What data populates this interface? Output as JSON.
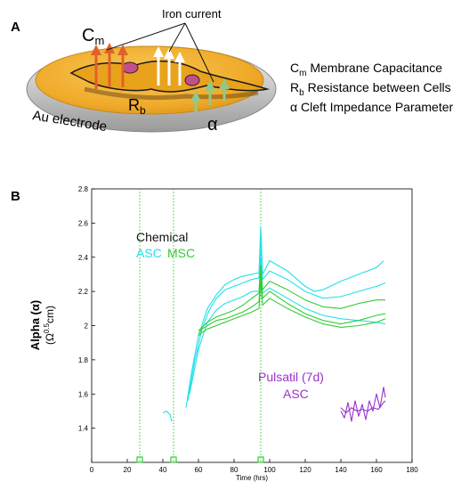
{
  "panel_a": {
    "label": "A",
    "iron_current": "Iron current",
    "cm_main": "C",
    "cm_sub": "m",
    "rb_main": "R",
    "rb_sub": "b",
    "alpha": "α",
    "electrode": "Au electrode",
    "legend": [
      {
        "sym": "C",
        "sub": "m",
        "text": "Membrane Capacitance"
      },
      {
        "sym": "R",
        "sub": "b",
        "text": "Resistance between Cells"
      },
      {
        "sym": "α",
        "sub": "",
        "text": "Cleft Impedance Parameter"
      }
    ],
    "colors": {
      "dish": "#f2b23a",
      "cell": "#e8a21c",
      "nucleus": "#c0508a",
      "arrow_cm": "#e0602a",
      "arrow_rb": "#ffffff",
      "arrow_alpha": "#8fc98a"
    }
  },
  "panel_b": {
    "label": "B",
    "ylabel_main": "Alpha (α)",
    "ylabel_unit": "(Ω",
    "ylabel_exp": "0.5",
    "ylabel_tail": "cm)",
    "annot_chemical": "Chemical",
    "annot_asc": "ASC",
    "annot_msc": "MSC",
    "annot_pulsatil": "Pulsatil (7d)",
    "annot_pulsatil_asc": "ASC"
  },
  "chart_data": {
    "type": "line",
    "xlabel": "Time (hrs)",
    "ylabel": "Alpha (α) (Ω^0.5cm)",
    "xlim": [
      0,
      180
    ],
    "ylim": [
      1.2,
      2.8
    ],
    "xticks": [
      0,
      20,
      40,
      60,
      80,
      100,
      120,
      140,
      160,
      180
    ],
    "yticks": [
      1.4,
      1.6,
      1.8,
      2,
      2.2,
      2.4,
      2.6,
      2.8
    ],
    "vlines": [
      27,
      46,
      95
    ],
    "markers": [
      {
        "x": 27,
        "y": 1.2
      },
      {
        "x": 46,
        "y": 1.2
      },
      {
        "x": 95,
        "y": 1.2
      }
    ],
    "colors": {
      "ASC": "#22e0e8",
      "MSC": "#33cc33",
      "Pulsatil": "#9933cc",
      "vline": "#33cc33"
    },
    "series": [
      {
        "name": "ASC",
        "group": "Chemical",
        "color": "#22e0e8",
        "x": [
          40,
          42,
          44,
          45
        ],
        "y": [
          1.49,
          1.5,
          1.48,
          1.44
        ]
      },
      {
        "name": "ASC",
        "group": "Chemical",
        "color": "#22e0e8",
        "x": [
          53,
          56,
          60,
          65,
          70,
          75,
          80,
          85,
          90,
          94,
          95,
          96,
          100,
          110,
          120,
          125,
          130,
          140,
          150,
          160,
          164
        ],
        "y": [
          1.52,
          1.72,
          1.94,
          2.1,
          2.18,
          2.24,
          2.27,
          2.29,
          2.3,
          2.31,
          2.58,
          2.3,
          2.38,
          2.32,
          2.23,
          2.2,
          2.21,
          2.26,
          2.3,
          2.34,
          2.38
        ]
      },
      {
        "name": "ASC",
        "group": "Chemical",
        "color": "#22e0e8",
        "x": [
          54,
          58,
          62,
          66,
          70,
          75,
          80,
          85,
          90,
          94,
          95,
          96,
          100,
          110,
          120,
          130,
          140,
          150,
          160,
          165
        ],
        "y": [
          1.56,
          1.8,
          1.98,
          2.09,
          2.16,
          2.21,
          2.23,
          2.25,
          2.27,
          2.28,
          2.5,
          2.27,
          2.32,
          2.27,
          2.2,
          2.16,
          2.17,
          2.2,
          2.23,
          2.25
        ]
      },
      {
        "name": "ASC",
        "group": "Chemical",
        "color": "#22e0e8",
        "x": [
          55,
          60,
          65,
          70,
          75,
          80,
          85,
          90,
          94,
          95,
          96,
          100,
          110,
          120,
          130,
          140,
          150,
          160,
          165
        ],
        "y": [
          1.6,
          1.86,
          2.02,
          2.09,
          2.13,
          2.15,
          2.17,
          2.2,
          2.2,
          2.4,
          2.19,
          2.22,
          2.16,
          2.1,
          2.06,
          2.04,
          2.03,
          2.02,
          2.01
        ]
      },
      {
        "name": "MSC",
        "group": "Chemical",
        "color": "#33cc33",
        "x": [
          60,
          62,
          65,
          70,
          75,
          80,
          85,
          90,
          94,
          95,
          96,
          100,
          110,
          120,
          130,
          140,
          150,
          160,
          165
        ],
        "y": [
          1.97,
          1.99,
          2.02,
          2.05,
          2.07,
          2.09,
          2.12,
          2.16,
          2.19,
          2.35,
          2.21,
          2.26,
          2.21,
          2.15,
          2.11,
          2.1,
          2.13,
          2.15,
          2.15
        ]
      },
      {
        "name": "MSC",
        "group": "Chemical",
        "color": "#33cc33",
        "x": [
          60,
          62,
          65,
          70,
          75,
          80,
          85,
          90,
          94,
          95,
          96,
          100,
          110,
          120,
          130,
          140,
          150,
          160,
          165
        ],
        "y": [
          1.95,
          1.98,
          2.0,
          2.03,
          2.04,
          2.06,
          2.08,
          2.11,
          2.14,
          2.3,
          2.16,
          2.2,
          2.13,
          2.07,
          2.03,
          2.01,
          2.03,
          2.06,
          2.07
        ]
      },
      {
        "name": "MSC",
        "group": "Chemical",
        "color": "#33cc33",
        "x": [
          60,
          62,
          65,
          70,
          75,
          80,
          85,
          90,
          94,
          95,
          96,
          100,
          110,
          120,
          130,
          140,
          150,
          160,
          165
        ],
        "y": [
          1.94,
          1.96,
          1.98,
          2.0,
          2.02,
          2.04,
          2.06,
          2.08,
          2.1,
          2.26,
          2.12,
          2.16,
          2.1,
          2.05,
          2.01,
          1.99,
          2.0,
          2.02,
          2.04
        ]
      },
      {
        "name": "ASC",
        "group": "Pulsatil (7d)",
        "color": "#9933cc",
        "x": [
          140,
          142,
          144,
          146,
          148,
          150,
          152,
          154,
          156,
          158,
          160,
          162,
          164,
          165
        ],
        "y": [
          1.5,
          1.46,
          1.55,
          1.44,
          1.56,
          1.47,
          1.54,
          1.45,
          1.56,
          1.5,
          1.6,
          1.52,
          1.64,
          1.58
        ]
      },
      {
        "name": "ASC",
        "group": "Pulsatil (7d)",
        "color": "#9933cc",
        "x": [
          140,
          143,
          146,
          149,
          152,
          155,
          158,
          161,
          164,
          165
        ],
        "y": [
          1.52,
          1.49,
          1.52,
          1.5,
          1.51,
          1.5,
          1.52,
          1.51,
          1.55,
          1.56
        ]
      }
    ]
  }
}
